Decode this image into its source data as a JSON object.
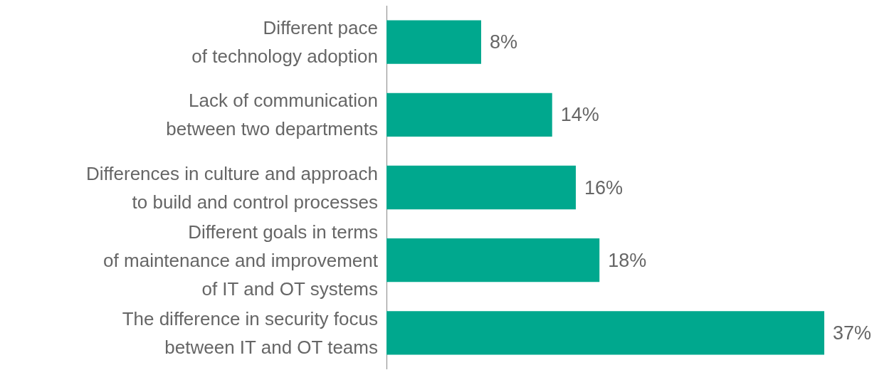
{
  "chart_data": {
    "type": "bar",
    "orientation": "horizontal",
    "categories": [
      "Different pace\nof technology adoption",
      "Lack of communication\nbetween two departments",
      "Differences in culture and approach\nto build and control processes",
      "Different goals in terms\nof maintenance and improvement\nof IT and OT systems",
      "The difference in security focus\nbetween IT and OT teams"
    ],
    "values": [
      8,
      14,
      16,
      18,
      37
    ],
    "value_labels": [
      "8%",
      "14%",
      "16%",
      "18%",
      "37%"
    ],
    "color": "#00a88e",
    "tick_labels": "y"
  }
}
